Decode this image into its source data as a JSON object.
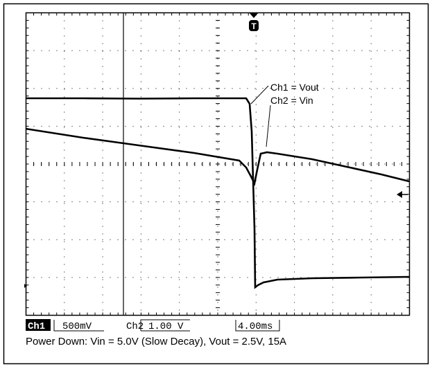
{
  "trace_labels": {
    "ch1": "Ch1 = Vout",
    "ch2": "Ch2 = Vin"
  },
  "trigger": "T",
  "readout": {
    "ch1": "Ch1",
    "ch1_scale": "500mV",
    "ch2": "Ch2",
    "ch2_scale": "1.00 V",
    "timebase": "4.00ms"
  },
  "caption": "Power Down: Vin = 5.0V (Slow Decay), Vout = 2.5V, 15A"
}
